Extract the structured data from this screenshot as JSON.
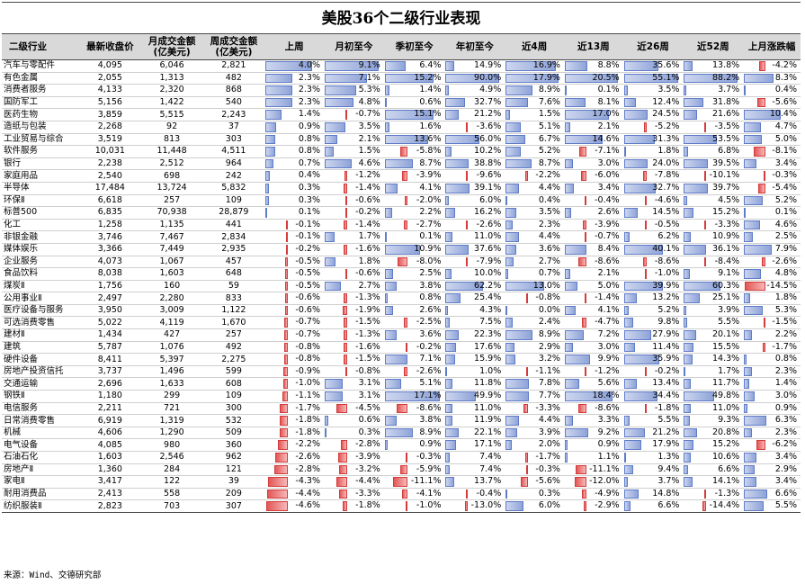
{
  "title": "美股36个二级行业表现",
  "source": "来源：Wind、交德研究部",
  "headers": [
    "二级行业",
    "最新收盘价",
    "月成交金额\n(亿美元)",
    "周成交金额\n(亿美元)",
    "上周",
    "月初至今",
    "季初至今",
    "年初至今",
    "近4周",
    "近13周",
    "近26周",
    "近52周",
    "上月涨跌幅"
  ],
  "colors": {
    "positive_bar": "#8ea3d8",
    "negative_bar": "#e35757",
    "header_bg": "#d9d9d9"
  },
  "rows": [
    {
      "name": "汽车与零配件",
      "price": "4,095",
      "month_amt": "6,046",
      "week_amt": "2,821",
      "vals": [
        "4.0%",
        "9.1%",
        "6.4%",
        "14.9%",
        "16.9%",
        "8.8%",
        "35.6%",
        "13.8%",
        "-4.2%"
      ]
    },
    {
      "name": "有色金属",
      "price": "2,055",
      "month_amt": "1,313",
      "week_amt": "482",
      "vals": [
        "2.3%",
        "7.1%",
        "15.2%",
        "90.0%",
        "17.9%",
        "20.5%",
        "55.1%",
        "88.2%",
        "8.3%"
      ]
    },
    {
      "name": "消费者服务",
      "price": "4,133",
      "month_amt": "2,320",
      "week_amt": "868",
      "vals": [
        "2.3%",
        "5.3%",
        "1.4%",
        "4.9%",
        "8.9%",
        "0.1%",
        "3.5%",
        "3.7%",
        "0.4%"
      ]
    },
    {
      "name": "国防军工",
      "price": "5,156",
      "month_amt": "1,422",
      "week_amt": "540",
      "vals": [
        "2.3%",
        "4.8%",
        "0.6%",
        "32.7%",
        "7.6%",
        "8.1%",
        "12.4%",
        "31.8%",
        "-5.6%"
      ]
    },
    {
      "name": "医药生物",
      "price": "3,859",
      "month_amt": "5,515",
      "week_amt": "2,243",
      "vals": [
        "1.4%",
        "-0.7%",
        "15.1%",
        "21.2%",
        "1.5%",
        "17.0%",
        "24.5%",
        "21.6%",
        "10.4%"
      ]
    },
    {
      "name": "造纸与包装",
      "price": "2,268",
      "month_amt": "92",
      "week_amt": "37",
      "vals": [
        "0.9%",
        "3.5%",
        "1.6%",
        "-3.6%",
        "5.1%",
        "2.1%",
        "-5.2%",
        "-3.5%",
        "4.7%"
      ]
    },
    {
      "name": "工业贸易与综合",
      "price": "3,519",
      "month_amt": "813",
      "week_amt": "303",
      "vals": [
        "0.8%",
        "2.1%",
        "13.6%",
        "56.0%",
        "6.7%",
        "14.6%",
        "31.3%",
        "53.5%",
        "5.0%"
      ]
    },
    {
      "name": "软件服务",
      "price": "10,031",
      "month_amt": "11,448",
      "week_amt": "4,511",
      "vals": [
        "0.8%",
        "1.5%",
        "-5.8%",
        "10.2%",
        "5.2%",
        "-7.1%",
        "1.8%",
        "6.8%",
        "-8.1%"
      ]
    },
    {
      "name": "银行",
      "price": "2,238",
      "month_amt": "2,512",
      "week_amt": "964",
      "vals": [
        "0.7%",
        "4.6%",
        "8.7%",
        "38.8%",
        "8.7%",
        "3.0%",
        "24.0%",
        "39.5%",
        "3.4%"
      ]
    },
    {
      "name": "家庭用品",
      "price": "2,540",
      "month_amt": "698",
      "week_amt": "242",
      "vals": [
        "0.4%",
        "-1.2%",
        "-3.9%",
        "-9.6%",
        "-2.2%",
        "-6.0%",
        "-7.8%",
        "-10.1%",
        "-0.3%"
      ]
    },
    {
      "name": "半导体",
      "price": "17,484",
      "month_amt": "13,724",
      "week_amt": "5,832",
      "vals": [
        "0.3%",
        "-1.4%",
        "4.1%",
        "39.1%",
        "4.4%",
        "3.4%",
        "32.7%",
        "39.7%",
        "-5.4%"
      ]
    },
    {
      "name": "环保Ⅱ",
      "price": "6,618",
      "month_amt": "257",
      "week_amt": "109",
      "vals": [
        "0.3%",
        "-0.6%",
        "-2.0%",
        "6.0%",
        "0.4%",
        "-0.4%",
        "-4.6%",
        "4.5%",
        "5.2%"
      ]
    },
    {
      "name": "标普500",
      "price": "6,835",
      "month_amt": "70,938",
      "week_amt": "28,879",
      "vals": [
        "0.1%",
        "-0.2%",
        "2.2%",
        "16.2%",
        "3.5%",
        "2.6%",
        "14.5%",
        "15.2%",
        "0.1%"
      ]
    },
    {
      "name": "化工",
      "price": "1,258",
      "month_amt": "1,135",
      "week_amt": "441",
      "vals": [
        "-0.1%",
        "-1.4%",
        "-2.7%",
        "-2.6%",
        "2.3%",
        "-3.9%",
        "-0.5%",
        "-3.3%",
        "4.6%"
      ]
    },
    {
      "name": "非银金融",
      "price": "3,746",
      "month_amt": "7,467",
      "week_amt": "2,834",
      "vals": [
        "-0.1%",
        "1.7%",
        "0.1%",
        "11.0%",
        "4.4%",
        "-0.7%",
        "6.2%",
        "10.9%",
        "2.5%"
      ]
    },
    {
      "name": "媒体娱乐",
      "price": "3,366",
      "month_amt": "7,449",
      "week_amt": "2,935",
      "vals": [
        "-0.2%",
        "-1.6%",
        "10.9%",
        "37.6%",
        "3.6%",
        "8.4%",
        "40.1%",
        "36.1%",
        "7.9%"
      ]
    },
    {
      "name": "企业服务",
      "price": "4,073",
      "month_amt": "1,067",
      "week_amt": "457",
      "vals": [
        "-0.5%",
        "1.8%",
        "-8.0%",
        "-7.9%",
        "2.7%",
        "-8.6%",
        "-8.6%",
        "-8.4%",
        "-2.6%"
      ]
    },
    {
      "name": "食品饮料",
      "price": "8,038",
      "month_amt": "1,603",
      "week_amt": "648",
      "vals": [
        "-0.5%",
        "-0.6%",
        "2.5%",
        "10.0%",
        "0.7%",
        "2.1%",
        "-1.0%",
        "9.1%",
        "4.8%"
      ]
    },
    {
      "name": "煤炭Ⅱ",
      "price": "1,756",
      "month_amt": "160",
      "week_amt": "59",
      "vals": [
        "-0.5%",
        "2.7%",
        "3.8%",
        "62.2%",
        "13.0%",
        "5.0%",
        "39.9%",
        "60.3%",
        "-14.5%"
      ]
    },
    {
      "name": "公用事业Ⅱ",
      "price": "2,497",
      "month_amt": "2,280",
      "week_amt": "833",
      "vals": [
        "-0.6%",
        "-1.3%",
        "0.8%",
        "25.4%",
        "-0.8%",
        "-1.4%",
        "13.2%",
        "25.1%",
        "1.8%"
      ]
    },
    {
      "name": "医疗设备与服务",
      "price": "3,950",
      "month_amt": "3,009",
      "week_amt": "1,122",
      "vals": [
        "-0.6%",
        "-1.9%",
        "2.6%",
        "4.3%",
        "0.0%",
        "4.1%",
        "5.2%",
        "3.9%",
        "5.3%"
      ]
    },
    {
      "name": "可选消费零售",
      "price": "5,022",
      "month_amt": "4,119",
      "week_amt": "1,670",
      "vals": [
        "-0.7%",
        "-1.5%",
        "-2.5%",
        "7.5%",
        "2.4%",
        "-4.7%",
        "9.8%",
        "5.5%",
        "-1.5%"
      ]
    },
    {
      "name": "建材Ⅱ",
      "price": "1,434",
      "month_amt": "427",
      "week_amt": "257",
      "vals": [
        "-0.7%",
        "-1.3%",
        "3.6%",
        "22.3%",
        "8.9%",
        "7.2%",
        "27.9%",
        "20.1%",
        "2.2%"
      ]
    },
    {
      "name": "建筑",
      "price": "5,787",
      "month_amt": "1,076",
      "week_amt": "492",
      "vals": [
        "-0.8%",
        "-1.6%",
        "-0.2%",
        "17.6%",
        "2.9%",
        "3.0%",
        "11.4%",
        "15.5%",
        "-1.7%"
      ]
    },
    {
      "name": "硬件设备",
      "price": "8,411",
      "month_amt": "5,397",
      "week_amt": "2,275",
      "vals": [
        "-0.8%",
        "-1.5%",
        "7.1%",
        "15.9%",
        "3.2%",
        "9.9%",
        "35.9%",
        "14.3%",
        "0.8%"
      ]
    },
    {
      "name": "房地产投资信托",
      "price": "3,737",
      "month_amt": "1,496",
      "week_amt": "599",
      "vals": [
        "-0.9%",
        "-0.8%",
        "-2.6%",
        "1.0%",
        "-1.1%",
        "-1.2%",
        "-0.2%",
        "1.7%",
        "2.3%"
      ]
    },
    {
      "name": "交通运输",
      "price": "2,696",
      "month_amt": "1,633",
      "week_amt": "608",
      "vals": [
        "-1.0%",
        "3.1%",
        "5.1%",
        "11.8%",
        "7.8%",
        "5.6%",
        "13.4%",
        "11.7%",
        "1.4%"
      ]
    },
    {
      "name": "钢铁Ⅱ",
      "price": "1,180",
      "month_amt": "299",
      "week_amt": "109",
      "vals": [
        "-1.1%",
        "3.1%",
        "17.1%",
        "49.9%",
        "7.7%",
        "18.4%",
        "34.4%",
        "49.8%",
        "3.0%"
      ]
    },
    {
      "name": "电信服务",
      "price": "2,211",
      "month_amt": "721",
      "week_amt": "300",
      "vals": [
        "-1.7%",
        "-4.5%",
        "-8.6%",
        "11.0%",
        "-3.3%",
        "-8.6%",
        "-1.8%",
        "11.0%",
        "0.9%"
      ]
    },
    {
      "name": "日常消费零售",
      "price": "6,919",
      "month_amt": "1,319",
      "week_amt": "532",
      "vals": [
        "-1.8%",
        "0.6%",
        "3.8%",
        "11.9%",
        "4.4%",
        "3.3%",
        "5.5%",
        "9.3%",
        "6.3%"
      ]
    },
    {
      "name": "机械",
      "price": "4,606",
      "month_amt": "1,290",
      "week_amt": "509",
      "vals": [
        "-1.8%",
        "0.3%",
        "8.9%",
        "22.1%",
        "3.9%",
        "9.2%",
        "21.2%",
        "20.8%",
        "2.3%"
      ]
    },
    {
      "name": "电气设备",
      "price": "4,085",
      "month_amt": "980",
      "week_amt": "360",
      "vals": [
        "-2.2%",
        "-2.8%",
        "0.9%",
        "17.1%",
        "2.0%",
        "0.9%",
        "17.9%",
        "15.2%",
        "-6.2%"
      ]
    },
    {
      "name": "石油石化",
      "price": "1,603",
      "month_amt": "2,546",
      "week_amt": "962",
      "vals": [
        "-2.6%",
        "-3.9%",
        "-0.3%",
        "7.4%",
        "-1.7%",
        "1.1%",
        "1.3%",
        "10.6%",
        "3.4%"
      ]
    },
    {
      "name": "房地产Ⅱ",
      "price": "1,360",
      "month_amt": "284",
      "week_amt": "121",
      "vals": [
        "-2.8%",
        "-3.2%",
        "-5.9%",
        "7.4%",
        "-0.3%",
        "-11.1%",
        "9.4%",
        "6.6%",
        "2.9%"
      ]
    },
    {
      "name": "家电Ⅱ",
      "price": "3,417",
      "month_amt": "122",
      "week_amt": "39",
      "vals": [
        "-4.3%",
        "-4.4%",
        "-11.1%",
        "13.7%",
        "-5.6%",
        "-12.0%",
        "3.7%",
        "14.1%",
        "3.4%"
      ]
    },
    {
      "name": "耐用消费品",
      "price": "2,413",
      "month_amt": "558",
      "week_amt": "209",
      "vals": [
        "-4.4%",
        "-3.3%",
        "-4.1%",
        "-0.4%",
        "0.3%",
        "-4.9%",
        "14.8%",
        "-1.3%",
        "6.6%"
      ]
    },
    {
      "name": "纺织服装Ⅱ",
      "price": "2,823",
      "month_amt": "703",
      "week_amt": "307",
      "vals": [
        "-4.6%",
        "-1.8%",
        "-1.0%",
        "-13.0%",
        "6.0%",
        "-2.9%",
        "6.6%",
        "-14.4%",
        "5.5%"
      ]
    }
  ]
}
